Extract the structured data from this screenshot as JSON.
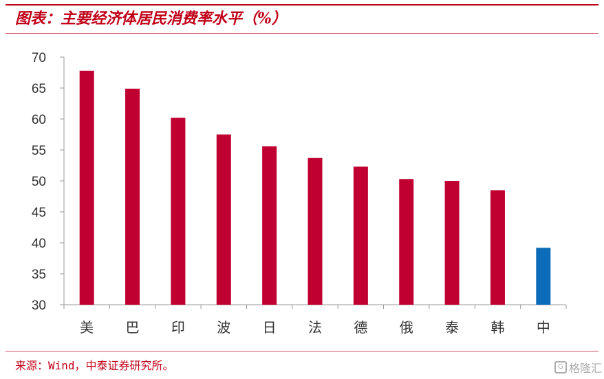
{
  "header": {
    "title": "图表：主要经济体居民消费率水平（%）"
  },
  "footer": {
    "source": "来源：Wind，中泰证券研究所。",
    "watermark": "格隆汇"
  },
  "colors": {
    "accent": "#c00018",
    "bar_default": "#c00031",
    "bar_highlight": "#0d6cba"
  },
  "chart_data": {
    "type": "bar",
    "title": "",
    "xlabel": "",
    "ylabel": "",
    "categories": [
      "美",
      "巴",
      "印",
      "波",
      "日",
      "法",
      "德",
      "俄",
      "泰",
      "韩",
      "中"
    ],
    "values": [
      67.8,
      64.9,
      60.2,
      57.5,
      55.6,
      53.7,
      52.3,
      50.3,
      50.0,
      48.5,
      39.2
    ],
    "highlight_category": "中",
    "ylim": [
      30,
      70
    ],
    "yticks": [
      30,
      35,
      40,
      45,
      50,
      55,
      60,
      65,
      70
    ],
    "grid": false,
    "legend": "none"
  }
}
